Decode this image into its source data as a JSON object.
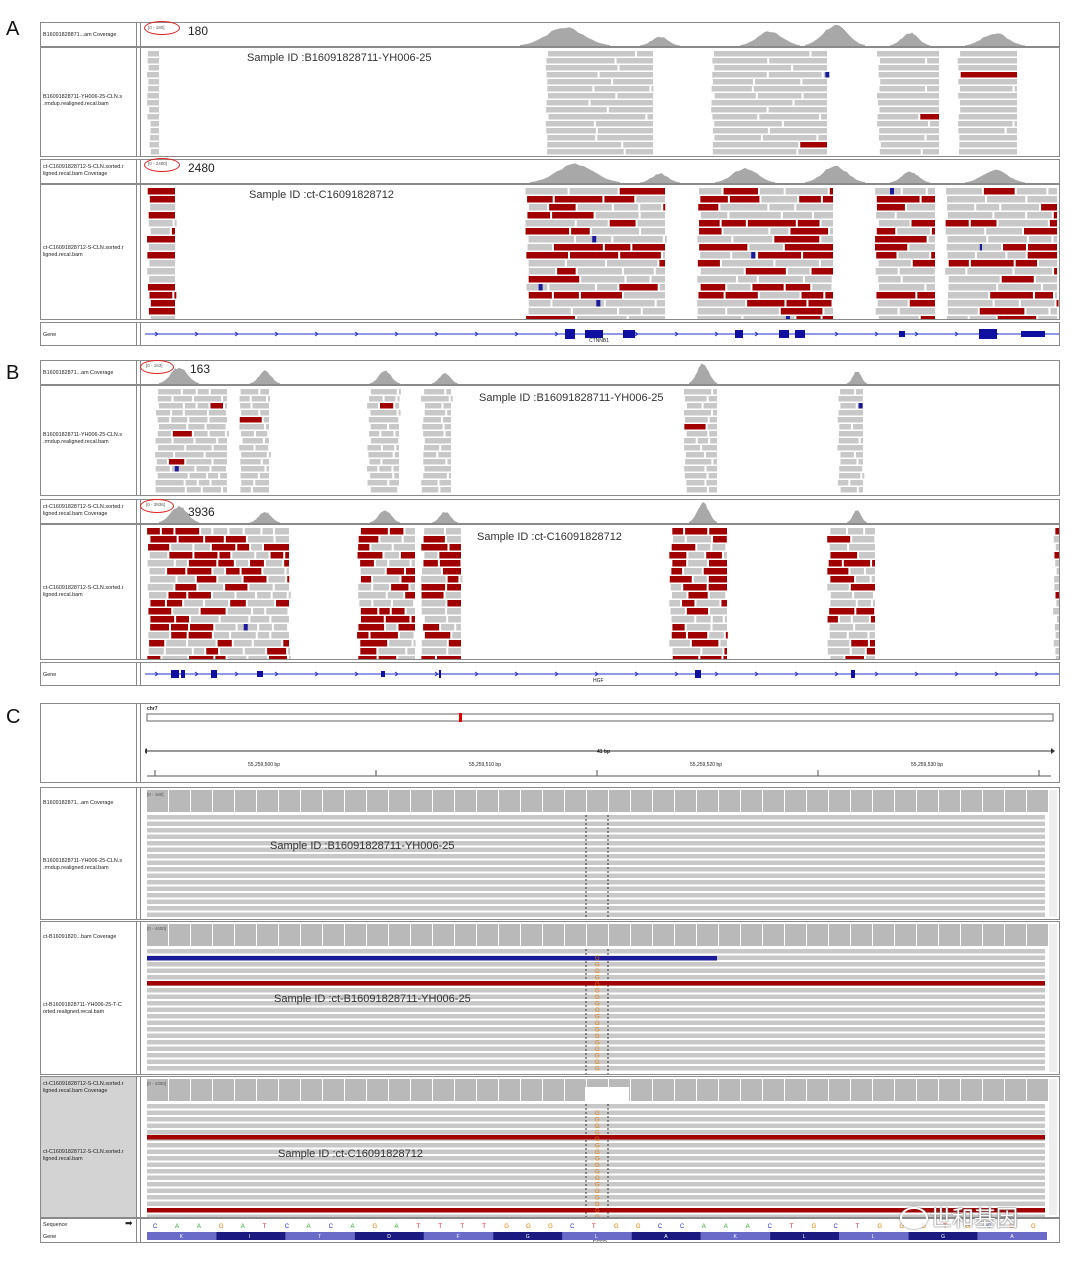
{
  "panels": {
    "A": {
      "letter": "A",
      "tracks": {
        "cov1_label": "B16091828871...am Coverage",
        "reads1_label": "B16091828711-YH006-25-CLN.s .rmdup.realigned.recal.bam",
        "cov2_label": "ct-C16091828712-S-CLN.sorted.r ligned.recal.bam Coverage",
        "reads2_label": "ct-C16091828712-S-CLN.sorted.r ligned.recal.bam",
        "gene_label": "Gene"
      },
      "range1": "[0 - 180]",
      "count1": "180",
      "range2": "[0 - 2480]",
      "count2": "2480",
      "sample1": "Sample ID :B16091828711-YH006-25",
      "sample2": "Sample ID :ct-C16091828712",
      "gene": "CTNNB1"
    },
    "B": {
      "letter": "B",
      "tracks": {
        "cov1_label": "B1609182871...am Coverage",
        "reads1_label": "B16091828711-YH006-25-CLN.s .rmdup.realigned.recal.bam",
        "cov2_label": "ct-C16091828712-S-CLN.sorted.r ligned.recal.bam Coverage",
        "reads2_label": "ct-C16091828712-S-CLN.sorted.r ligned.recal.bam",
        "gene_label": "Gene"
      },
      "range1": "[0 - 163]",
      "count1": "163",
      "range2": "[0 - 3936]",
      "count2": "3936",
      "sample1": "Sample ID :B16091828711-YH006-25",
      "sample2": "Sample ID :ct-C16091828712",
      "gene": "HGF"
    },
    "C": {
      "letter": "C",
      "chrom": "chr7",
      "span": "41 bp",
      "ticks": [
        "55,259,500 bp",
        "55,259,510 bp",
        "55,259,520 bp",
        "55,259,530 bp"
      ],
      "tracks": {
        "cov1_label": "B1609182871...am Coverage",
        "reads1_label": "B16091828711-YH006-25-CLN.s .rmdup.realigned.recal.bam",
        "cov2_label": "ct-B16091820...bam Coverage",
        "reads2_label": "ct-B16091828711-YH006-25-T-C orted.realigned.recal.bam",
        "cov3_label": "ct-C16091828712-S-CLN.sorted.r ligned.recal.bam Coverage",
        "reads3_label": "ct-C16091828712-S-CLN.sorted.r ligned.recal.bam",
        "seq_label": "Sequence",
        "gene_label": "Gene"
      },
      "range1": "[0 - 180]",
      "range2": "[0 - 4400]",
      "range3": "[0 - 4300]",
      "sample1": "Sample ID :B16091828711-YH006-25",
      "sample2": "Sample ID :ct-B16091828711-YH006-25",
      "sample3": "Sample ID :ct-C16091828712",
      "sequence": [
        "C",
        "A",
        "A",
        "G",
        "A",
        "T",
        "C",
        "A",
        "C",
        "A",
        "G",
        "A",
        "T",
        "T",
        "T",
        "T",
        "G",
        "G",
        "G",
        "C",
        "T",
        "G",
        "G",
        "C",
        "C",
        "A",
        "A",
        "A",
        "C",
        "T",
        "G",
        "C",
        "T",
        "G",
        "G",
        "G",
        "T",
        "G",
        "C",
        "G",
        "G"
      ],
      "aminoacids": [
        "K",
        "I",
        "T",
        "D",
        "F",
        "G",
        "L",
        "A",
        "K",
        "L",
        "L",
        "G",
        "A"
      ],
      "gene": "EGFR"
    }
  },
  "watermark": "世和基因",
  "colors": {
    "read": "#c8c8c8",
    "mismatch_read": "#a00000",
    "coverage": "#a8a8a8",
    "gene_line": "#2233cc",
    "deletion_read": "#1a1a9a",
    "base_G": "#e07800",
    "base_A": "#22aa22",
    "base_C": "#2233cc",
    "base_T": "#cc2222"
  }
}
